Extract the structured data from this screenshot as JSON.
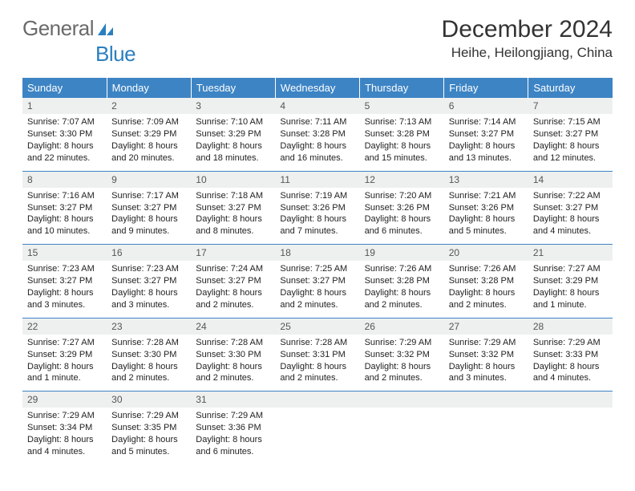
{
  "logo": {
    "part1": "General",
    "part2": "Blue"
  },
  "title": "December 2024",
  "location": "Heihe, Heilongjiang, China",
  "header_bg": "#3d84c4",
  "daynum_bg": "#eef0f0",
  "border_color": "#3d84c4",
  "weekdays": [
    "Sunday",
    "Monday",
    "Tuesday",
    "Wednesday",
    "Thursday",
    "Friday",
    "Saturday"
  ],
  "weeks": [
    [
      {
        "n": "1",
        "sr": "Sunrise: 7:07 AM",
        "ss": "Sunset: 3:30 PM",
        "d1": "Daylight: 8 hours",
        "d2": "and 22 minutes."
      },
      {
        "n": "2",
        "sr": "Sunrise: 7:09 AM",
        "ss": "Sunset: 3:29 PM",
        "d1": "Daylight: 8 hours",
        "d2": "and 20 minutes."
      },
      {
        "n": "3",
        "sr": "Sunrise: 7:10 AM",
        "ss": "Sunset: 3:29 PM",
        "d1": "Daylight: 8 hours",
        "d2": "and 18 minutes."
      },
      {
        "n": "4",
        "sr": "Sunrise: 7:11 AM",
        "ss": "Sunset: 3:28 PM",
        "d1": "Daylight: 8 hours",
        "d2": "and 16 minutes."
      },
      {
        "n": "5",
        "sr": "Sunrise: 7:13 AM",
        "ss": "Sunset: 3:28 PM",
        "d1": "Daylight: 8 hours",
        "d2": "and 15 minutes."
      },
      {
        "n": "6",
        "sr": "Sunrise: 7:14 AM",
        "ss": "Sunset: 3:27 PM",
        "d1": "Daylight: 8 hours",
        "d2": "and 13 minutes."
      },
      {
        "n": "7",
        "sr": "Sunrise: 7:15 AM",
        "ss": "Sunset: 3:27 PM",
        "d1": "Daylight: 8 hours",
        "d2": "and 12 minutes."
      }
    ],
    [
      {
        "n": "8",
        "sr": "Sunrise: 7:16 AM",
        "ss": "Sunset: 3:27 PM",
        "d1": "Daylight: 8 hours",
        "d2": "and 10 minutes."
      },
      {
        "n": "9",
        "sr": "Sunrise: 7:17 AM",
        "ss": "Sunset: 3:27 PM",
        "d1": "Daylight: 8 hours",
        "d2": "and 9 minutes."
      },
      {
        "n": "10",
        "sr": "Sunrise: 7:18 AM",
        "ss": "Sunset: 3:27 PM",
        "d1": "Daylight: 8 hours",
        "d2": "and 8 minutes."
      },
      {
        "n": "11",
        "sr": "Sunrise: 7:19 AM",
        "ss": "Sunset: 3:26 PM",
        "d1": "Daylight: 8 hours",
        "d2": "and 7 minutes."
      },
      {
        "n": "12",
        "sr": "Sunrise: 7:20 AM",
        "ss": "Sunset: 3:26 PM",
        "d1": "Daylight: 8 hours",
        "d2": "and 6 minutes."
      },
      {
        "n": "13",
        "sr": "Sunrise: 7:21 AM",
        "ss": "Sunset: 3:26 PM",
        "d1": "Daylight: 8 hours",
        "d2": "and 5 minutes."
      },
      {
        "n": "14",
        "sr": "Sunrise: 7:22 AM",
        "ss": "Sunset: 3:27 PM",
        "d1": "Daylight: 8 hours",
        "d2": "and 4 minutes."
      }
    ],
    [
      {
        "n": "15",
        "sr": "Sunrise: 7:23 AM",
        "ss": "Sunset: 3:27 PM",
        "d1": "Daylight: 8 hours",
        "d2": "and 3 minutes."
      },
      {
        "n": "16",
        "sr": "Sunrise: 7:23 AM",
        "ss": "Sunset: 3:27 PM",
        "d1": "Daylight: 8 hours",
        "d2": "and 3 minutes."
      },
      {
        "n": "17",
        "sr": "Sunrise: 7:24 AM",
        "ss": "Sunset: 3:27 PM",
        "d1": "Daylight: 8 hours",
        "d2": "and 2 minutes."
      },
      {
        "n": "18",
        "sr": "Sunrise: 7:25 AM",
        "ss": "Sunset: 3:27 PM",
        "d1": "Daylight: 8 hours",
        "d2": "and 2 minutes."
      },
      {
        "n": "19",
        "sr": "Sunrise: 7:26 AM",
        "ss": "Sunset: 3:28 PM",
        "d1": "Daylight: 8 hours",
        "d2": "and 2 minutes."
      },
      {
        "n": "20",
        "sr": "Sunrise: 7:26 AM",
        "ss": "Sunset: 3:28 PM",
        "d1": "Daylight: 8 hours",
        "d2": "and 2 minutes."
      },
      {
        "n": "21",
        "sr": "Sunrise: 7:27 AM",
        "ss": "Sunset: 3:29 PM",
        "d1": "Daylight: 8 hours",
        "d2": "and 1 minute."
      }
    ],
    [
      {
        "n": "22",
        "sr": "Sunrise: 7:27 AM",
        "ss": "Sunset: 3:29 PM",
        "d1": "Daylight: 8 hours",
        "d2": "and 1 minute."
      },
      {
        "n": "23",
        "sr": "Sunrise: 7:28 AM",
        "ss": "Sunset: 3:30 PM",
        "d1": "Daylight: 8 hours",
        "d2": "and 2 minutes."
      },
      {
        "n": "24",
        "sr": "Sunrise: 7:28 AM",
        "ss": "Sunset: 3:30 PM",
        "d1": "Daylight: 8 hours",
        "d2": "and 2 minutes."
      },
      {
        "n": "25",
        "sr": "Sunrise: 7:28 AM",
        "ss": "Sunset: 3:31 PM",
        "d1": "Daylight: 8 hours",
        "d2": "and 2 minutes."
      },
      {
        "n": "26",
        "sr": "Sunrise: 7:29 AM",
        "ss": "Sunset: 3:32 PM",
        "d1": "Daylight: 8 hours",
        "d2": "and 2 minutes."
      },
      {
        "n": "27",
        "sr": "Sunrise: 7:29 AM",
        "ss": "Sunset: 3:32 PM",
        "d1": "Daylight: 8 hours",
        "d2": "and 3 minutes."
      },
      {
        "n": "28",
        "sr": "Sunrise: 7:29 AM",
        "ss": "Sunset: 3:33 PM",
        "d1": "Daylight: 8 hours",
        "d2": "and 4 minutes."
      }
    ],
    [
      {
        "n": "29",
        "sr": "Sunrise: 7:29 AM",
        "ss": "Sunset: 3:34 PM",
        "d1": "Daylight: 8 hours",
        "d2": "and 4 minutes."
      },
      {
        "n": "30",
        "sr": "Sunrise: 7:29 AM",
        "ss": "Sunset: 3:35 PM",
        "d1": "Daylight: 8 hours",
        "d2": "and 5 minutes."
      },
      {
        "n": "31",
        "sr": "Sunrise: 7:29 AM",
        "ss": "Sunset: 3:36 PM",
        "d1": "Daylight: 8 hours",
        "d2": "and 6 minutes."
      },
      null,
      null,
      null,
      null
    ]
  ]
}
